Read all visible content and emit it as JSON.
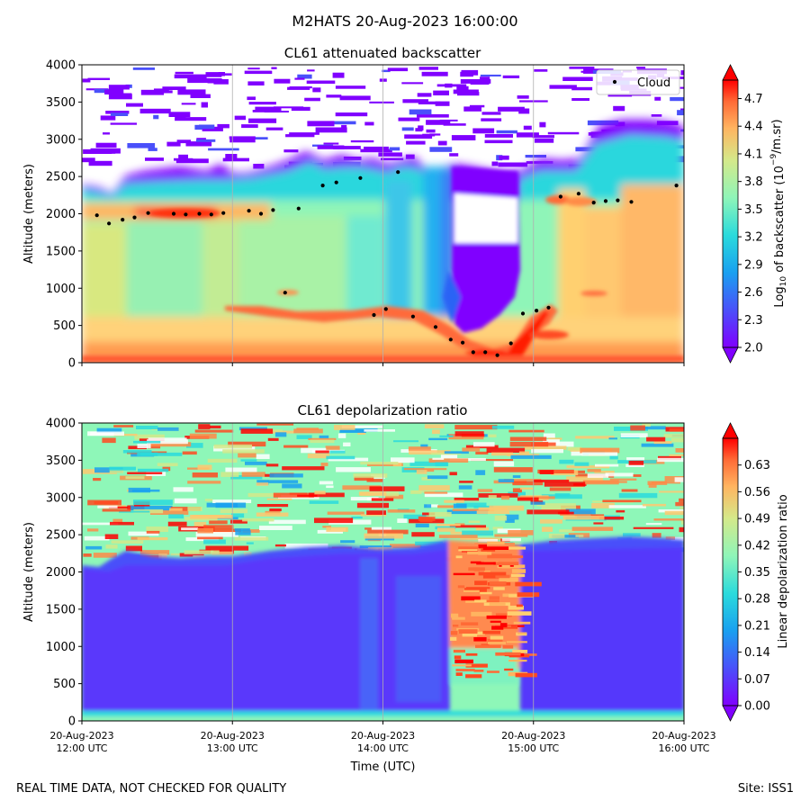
{
  "figure": {
    "suptitle": "M2HATS 20-Aug-2023 16:00:00",
    "footer_left": "REAL TIME DATA, NOT CHECKED FOR QUALITY",
    "footer_right": "Site: ISS1"
  },
  "chart_data": [
    {
      "type": "heatmap",
      "title": "CL61 attenuated backscatter",
      "ylabel": "Altitude (meters)",
      "xlabel": "",
      "ylim": [
        0,
        4000
      ],
      "yticks": [
        "0",
        "500",
        "1000",
        "1500",
        "2000",
        "2500",
        "3000",
        "3500",
        "4000"
      ],
      "xlim_hours": [
        12,
        16
      ],
      "x_grid_hours": [
        13,
        14,
        15
      ],
      "colorbar": {
        "label": "Log10 of backscatter (10^-9/m.sr)",
        "label_main": "Log",
        "label_sub": "10",
        "label_rest": " of backscatter (10",
        "label_sup": "−9",
        "label_end": "/m.sr)",
        "ticks": [
          "2.0",
          "2.3",
          "2.6",
          "2.9",
          "3.2",
          "3.5",
          "3.8",
          "4.1",
          "4.4",
          "4.7"
        ],
        "range": [
          2.0,
          4.9
        ]
      },
      "legend": {
        "position": "upper-right",
        "entries": [
          "Cloud"
        ]
      },
      "cloud_base": {
        "hours": [
          12.1,
          12.18,
          12.27,
          12.35,
          12.44,
          12.61,
          12.69,
          12.78,
          12.86,
          12.94,
          13.11,
          13.19,
          13.27,
          13.35,
          13.44,
          13.6,
          13.69,
          13.85,
          13.94,
          14.02,
          14.1,
          14.2,
          14.35,
          14.45,
          14.53,
          14.6,
          14.68,
          14.76,
          14.85,
          14.93,
          15.02,
          15.1,
          15.18,
          15.3,
          15.4,
          15.48,
          15.56,
          15.65,
          15.95
        ],
        "altitudes": [
          1980,
          1870,
          1920,
          1950,
          2010,
          2000,
          1990,
          2000,
          1990,
          2010,
          2040,
          2000,
          2050,
          940,
          2070,
          2380,
          2420,
          2480,
          640,
          720,
          2560,
          620,
          480,
          310,
          270,
          140,
          140,
          100,
          260,
          660,
          700,
          740,
          2230,
          2270,
          2150,
          2170,
          2180,
          2160,
          2380
        ]
      }
    },
    {
      "type": "heatmap",
      "title": "CL61 depolarization ratio",
      "ylabel": "Altitude (meters)",
      "xlabel": "Time (UTC)",
      "ylim": [
        0,
        4000
      ],
      "yticks": [
        "0",
        "500",
        "1000",
        "1500",
        "2000",
        "2500",
        "3000",
        "3500",
        "4000"
      ],
      "xticks": [
        {
          "hour": 12,
          "date": "20-Aug-2023",
          "time": "12:00 UTC"
        },
        {
          "hour": 13,
          "date": "20-Aug-2023",
          "time": "13:00 UTC"
        },
        {
          "hour": 14,
          "date": "20-Aug-2023",
          "time": "14:00 UTC"
        },
        {
          "hour": 15,
          "date": "20-Aug-2023",
          "time": "15:00 UTC"
        },
        {
          "hour": 16,
          "date": "20-Aug-2023",
          "time": "16:00 UTC"
        }
      ],
      "colorbar": {
        "label": "Linear depolarization ratio",
        "ticks": [
          "0.00",
          "0.07",
          "0.14",
          "0.21",
          "0.28",
          "0.35",
          "0.42",
          "0.49",
          "0.56",
          "0.63"
        ],
        "range": [
          0.0,
          0.7
        ]
      }
    }
  ]
}
